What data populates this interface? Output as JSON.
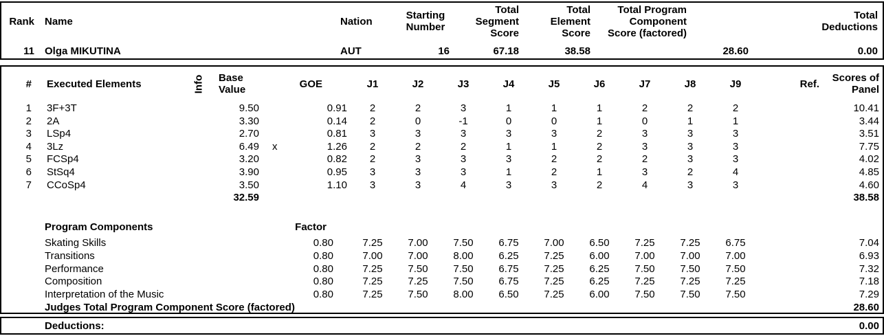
{
  "summary": {
    "labels": {
      "rank": "Rank",
      "name": "Name",
      "nation": "Nation",
      "starting_number": "Starting\nNumber",
      "total_segment_score": "Total\nSegment\nScore",
      "total_element_score": "Total\nElement\nScore",
      "total_pcs_factored": "Total Program Component\nScore (factored)",
      "total_deductions": "Total\nDeductions"
    },
    "values": {
      "rank": "11",
      "name": "Olga MIKUTINA",
      "nation": "AUT",
      "starting_number": "16",
      "total_segment_score": "67.18",
      "total_element_score": "38.58",
      "total_pcs_factored": "28.60",
      "total_deductions": "0.00"
    }
  },
  "elements": {
    "labels": {
      "num": "#",
      "executed_elements": "Executed Elements",
      "info": "Info",
      "base_value": "Base\nValue",
      "goe": "GOE",
      "ref": "Ref.",
      "scores_of_panel": "Scores of\nPanel"
    },
    "judges": [
      "J1",
      "J2",
      "J3",
      "J4",
      "J5",
      "J6",
      "J7",
      "J8",
      "J9"
    ],
    "rows": [
      {
        "num": "1",
        "name": "3F+3T",
        "info": "",
        "base_value": "9.50",
        "credit": "",
        "goe": "0.91",
        "j": [
          "2",
          "2",
          "3",
          "1",
          "1",
          "1",
          "2",
          "2",
          "2"
        ],
        "ref": "",
        "panel": "10.41"
      },
      {
        "num": "2",
        "name": "2A",
        "info": "",
        "base_value": "3.30",
        "credit": "",
        "goe": "0.14",
        "j": [
          "2",
          "0",
          "-1",
          "0",
          "0",
          "1",
          "0",
          "1",
          "1"
        ],
        "ref": "",
        "panel": "3.44"
      },
      {
        "num": "3",
        "name": "LSp4",
        "info": "",
        "base_value": "2.70",
        "credit": "",
        "goe": "0.81",
        "j": [
          "3",
          "3",
          "3",
          "3",
          "3",
          "2",
          "3",
          "3",
          "3"
        ],
        "ref": "",
        "panel": "3.51"
      },
      {
        "num": "4",
        "name": "3Lz",
        "info": "",
        "base_value": "6.49",
        "credit": "x",
        "goe": "1.26",
        "j": [
          "2",
          "2",
          "2",
          "1",
          "1",
          "2",
          "3",
          "3",
          "3"
        ],
        "ref": "",
        "panel": "7.75"
      },
      {
        "num": "5",
        "name": "FCSp4",
        "info": "",
        "base_value": "3.20",
        "credit": "",
        "goe": "0.82",
        "j": [
          "2",
          "3",
          "3",
          "3",
          "2",
          "2",
          "2",
          "3",
          "3"
        ],
        "ref": "",
        "panel": "4.02"
      },
      {
        "num": "6",
        "name": "StSq4",
        "info": "",
        "base_value": "3.90",
        "credit": "",
        "goe": "0.95",
        "j": [
          "3",
          "3",
          "3",
          "1",
          "2",
          "1",
          "3",
          "2",
          "4"
        ],
        "ref": "",
        "panel": "4.85"
      },
      {
        "num": "7",
        "name": "CCoSp4",
        "info": "",
        "base_value": "3.50",
        "credit": "",
        "goe": "1.10",
        "j": [
          "3",
          "3",
          "4",
          "3",
          "3",
          "2",
          "4",
          "3",
          "3"
        ],
        "ref": "",
        "panel": "4.60"
      }
    ],
    "total_base_value": "32.59",
    "total_panel_score": "38.58"
  },
  "components": {
    "title": "Program Components",
    "factor_label": "Factor",
    "rows": [
      {
        "name": "Skating Skills",
        "factor": "0.80",
        "j": [
          "7.25",
          "7.00",
          "7.50",
          "6.75",
          "7.00",
          "6.50",
          "7.25",
          "7.25",
          "6.75"
        ],
        "panel": "7.04"
      },
      {
        "name": "Transitions",
        "factor": "0.80",
        "j": [
          "7.00",
          "7.00",
          "8.00",
          "6.25",
          "7.25",
          "6.00",
          "7.00",
          "7.00",
          "7.00"
        ],
        "panel": "6.93"
      },
      {
        "name": "Performance",
        "factor": "0.80",
        "j": [
          "7.25",
          "7.50",
          "7.50",
          "6.75",
          "7.25",
          "6.25",
          "7.50",
          "7.50",
          "7.50"
        ],
        "panel": "7.32"
      },
      {
        "name": "Composition",
        "factor": "0.80",
        "j": [
          "7.25",
          "7.25",
          "7.50",
          "6.75",
          "7.25",
          "6.25",
          "7.25",
          "7.25",
          "7.25"
        ],
        "panel": "7.18"
      },
      {
        "name": "Interpretation of the Music",
        "factor": "0.80",
        "j": [
          "7.25",
          "7.50",
          "8.00",
          "6.50",
          "7.25",
          "6.00",
          "7.50",
          "7.50",
          "7.50"
        ],
        "panel": "7.29"
      }
    ],
    "total_label": "Judges Total Program Component Score (factored)",
    "total_score": "28.60"
  },
  "deductions": {
    "label": "Deductions:",
    "value": "0.00"
  }
}
